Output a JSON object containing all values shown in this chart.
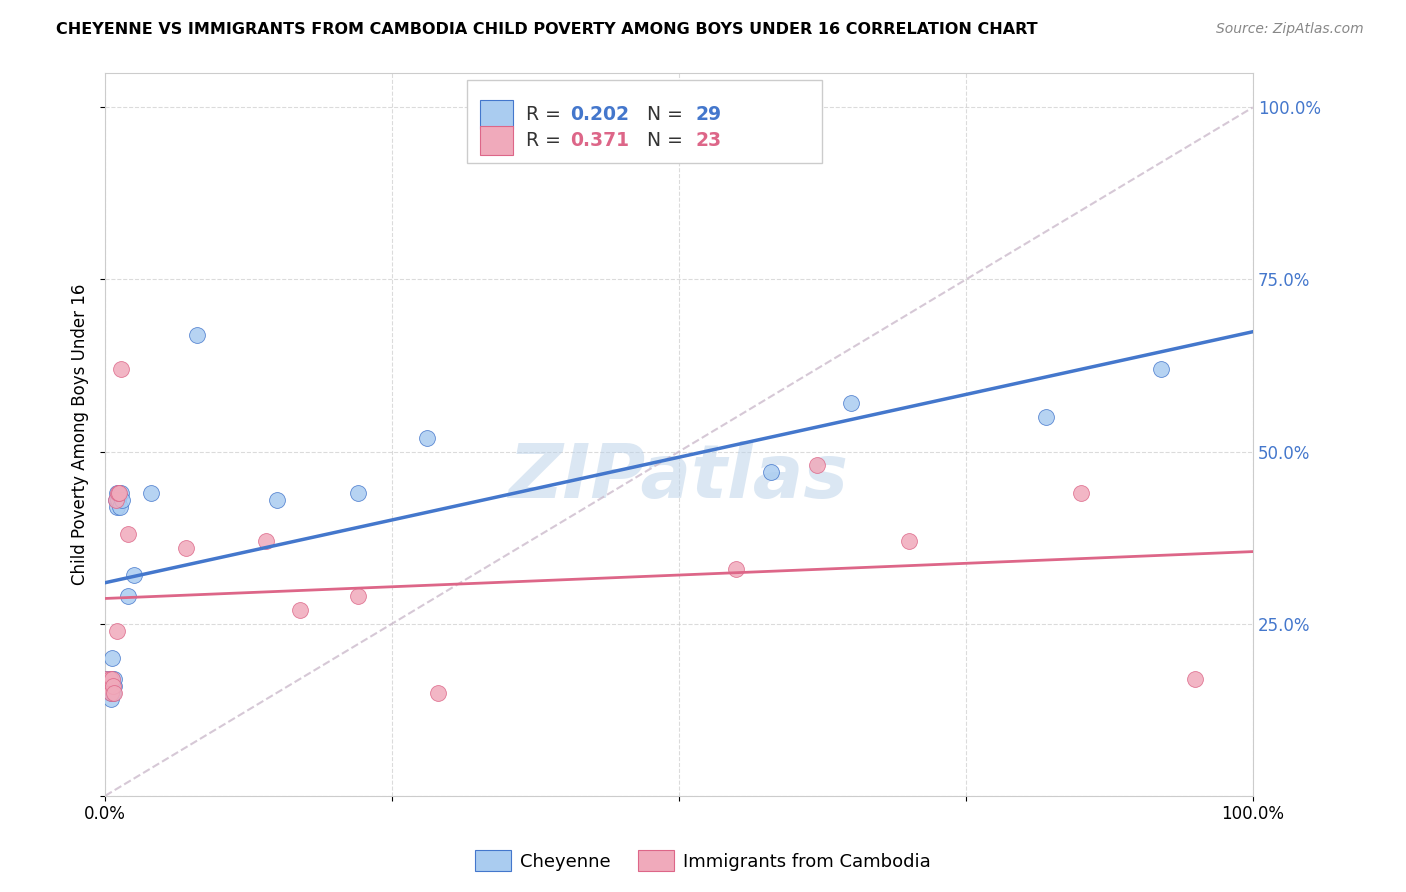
{
  "title": "CHEYENNE VS IMMIGRANTS FROM CAMBODIA CHILD POVERTY AMONG BOYS UNDER 16 CORRELATION CHART",
  "source": "Source: ZipAtlas.com",
  "ylabel": "Child Poverty Among Boys Under 16",
  "cheyenne_color": "#aaccf0",
  "cambodia_color": "#f0aabb",
  "cheyenne_line_color": "#4477cc",
  "cambodia_line_color": "#dd6688",
  "diagonal_color": "#ccbbcc",
  "cheyenne_R": 0.202,
  "cheyenne_N": 29,
  "cambodia_R": 0.371,
  "cambodia_N": 23,
  "cheyenne_x": [
    0.0,
    0.003,
    0.004,
    0.005,
    0.005,
    0.006,
    0.006,
    0.007,
    0.008,
    0.008,
    0.009,
    0.01,
    0.01,
    0.011,
    0.012,
    0.013,
    0.014,
    0.015,
    0.02,
    0.025,
    0.04,
    0.08,
    0.15,
    0.22,
    0.28,
    0.58,
    0.65,
    0.82,
    0.92
  ],
  "cheyenne_y": [
    0.17,
    0.17,
    0.16,
    0.14,
    0.15,
    0.17,
    0.2,
    0.15,
    0.16,
    0.17,
    0.43,
    0.42,
    0.44,
    0.43,
    0.44,
    0.42,
    0.44,
    0.43,
    0.29,
    0.32,
    0.44,
    0.67,
    0.43,
    0.44,
    0.52,
    0.47,
    0.57,
    0.55,
    0.62
  ],
  "cambodia_x": [
    0.0,
    0.003,
    0.004,
    0.005,
    0.006,
    0.007,
    0.008,
    0.009,
    0.01,
    0.011,
    0.012,
    0.014,
    0.02,
    0.07,
    0.14,
    0.17,
    0.22,
    0.29,
    0.55,
    0.62,
    0.7,
    0.85,
    0.95
  ],
  "cambodia_y": [
    0.17,
    0.16,
    0.17,
    0.15,
    0.17,
    0.16,
    0.15,
    0.43,
    0.24,
    0.44,
    0.44,
    0.62,
    0.38,
    0.36,
    0.37,
    0.27,
    0.29,
    0.15,
    0.33,
    0.48,
    0.37,
    0.44,
    0.17
  ],
  "xlim": [
    0.0,
    1.0
  ],
  "ylim": [
    0.0,
    1.05
  ],
  "xticks": [
    0.0,
    0.25,
    0.5,
    0.75,
    1.0
  ],
  "yticks": [
    0.0,
    0.25,
    0.5,
    0.75,
    1.0
  ],
  "legend_label1": "Cheyenne",
  "legend_label2": "Immigrants from Cambodia",
  "watermark": "ZIPatlas",
  "background_color": "#ffffff",
  "grid_color": "#cccccc"
}
